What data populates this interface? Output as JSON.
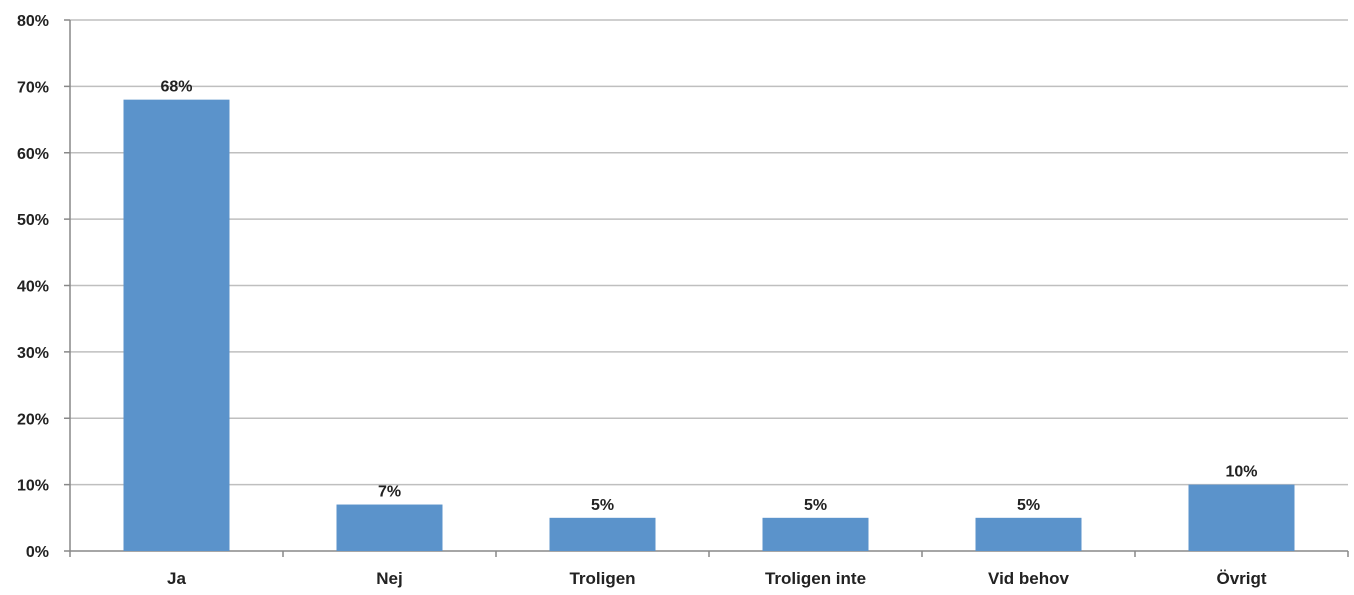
{
  "chart_data": {
    "type": "bar",
    "title": "",
    "xlabel": "",
    "ylabel": "",
    "categories": [
      "Ja",
      "Nej",
      "Troligen",
      "Troligen inte",
      "Vid behov",
      "Övrigt"
    ],
    "values": [
      68,
      7,
      5,
      5,
      5,
      10
    ],
    "data_labels": [
      "68%",
      "7%",
      "5%",
      "5%",
      "5%",
      "10%"
    ],
    "ylim": [
      0,
      80
    ],
    "y_ticks": [
      0,
      10,
      20,
      30,
      40,
      50,
      60,
      70,
      80
    ],
    "y_tick_labels": [
      "0%",
      "10%",
      "20%",
      "30%",
      "40%",
      "50%",
      "60%",
      "70%",
      "80%"
    ],
    "grid": true,
    "legend": "none",
    "colors": {
      "bar": "#5B93CB",
      "grid": "#BFBFBF",
      "axis": "#888888",
      "text": "#222222"
    }
  }
}
